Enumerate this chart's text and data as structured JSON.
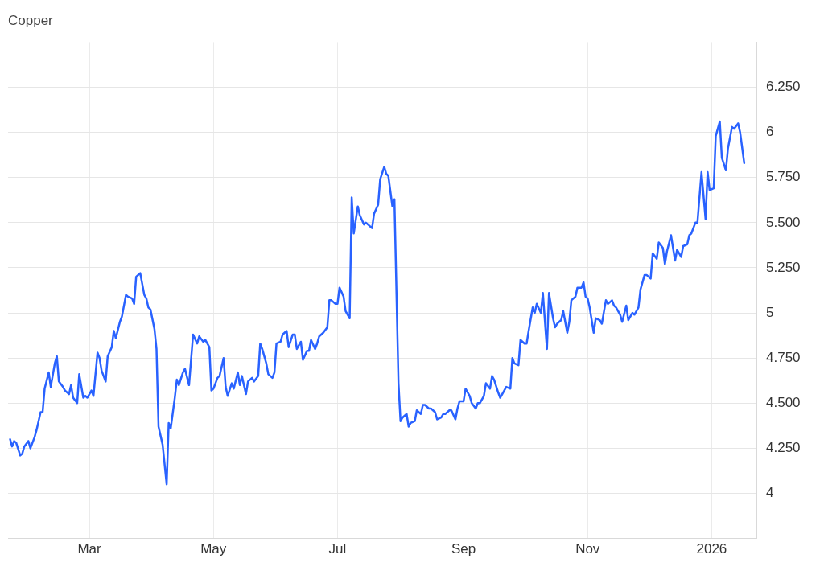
{
  "chart_data": {
    "type": "line",
    "title": "Copper",
    "legend": false,
    "grid": true,
    "marker": "none",
    "line_style": "solid",
    "xlim": [
      "2025-01-20",
      "2026-01-23"
    ],
    "xticks": [
      {
        "value": "2025-03-01",
        "label": "Mar"
      },
      {
        "value": "2025-05-01",
        "label": "May"
      },
      {
        "value": "2025-07-01",
        "label": "Jul"
      },
      {
        "value": "2025-09-01",
        "label": "Sep"
      },
      {
        "value": "2025-11-01",
        "label": "Nov"
      },
      {
        "value": "2026-01-01",
        "label": "2026"
      }
    ],
    "ylim": [
      3.75,
      6.5
    ],
    "yticks": [
      4,
      {
        "value": 4.25,
        "label": "4.250"
      },
      {
        "value": 4.5,
        "label": "4.500"
      },
      {
        "value": 4.75,
        "label": "4.750"
      },
      5,
      {
        "value": 5.25,
        "label": "5.250"
      },
      {
        "value": 5.5,
        "label": "5.500"
      },
      {
        "value": 5.75,
        "label": "5.750"
      },
      6,
      {
        "value": 6.25,
        "label": "6.250"
      }
    ],
    "x": [
      "2025-01-21",
      "2025-01-22",
      "2025-01-23",
      "2025-01-24",
      "2025-01-26",
      "2025-01-27",
      "2025-01-28",
      "2025-01-30",
      "2025-01-31",
      "2025-02-02",
      "2025-02-03",
      "2025-02-05",
      "2025-02-06",
      "2025-02-07",
      "2025-02-09",
      "2025-02-10",
      "2025-02-12",
      "2025-02-13",
      "2025-02-14",
      "2025-02-16",
      "2025-02-17",
      "2025-02-19",
      "2025-02-20",
      "2025-02-21",
      "2025-02-23",
      "2025-02-24",
      "2025-02-26",
      "2025-02-27",
      "2025-02-28",
      "2025-03-02",
      "2025-03-03",
      "2025-03-05",
      "2025-03-06",
      "2025-03-07",
      "2025-03-09",
      "2025-03-10",
      "2025-03-12",
      "2025-03-13",
      "2025-03-14",
      "2025-03-16",
      "2025-03-17",
      "2025-03-19",
      "2025-03-20",
      "2025-03-22",
      "2025-03-23",
      "2025-03-24",
      "2025-03-26",
      "2025-03-28",
      "2025-03-29",
      "2025-03-30",
      "2025-03-31",
      "2025-04-02",
      "2025-04-03",
      "2025-04-04",
      "2025-04-06",
      "2025-04-08",
      "2025-04-09",
      "2025-04-10",
      "2025-04-12",
      "2025-04-13",
      "2025-04-14",
      "2025-04-16",
      "2025-04-17",
      "2025-04-19",
      "2025-04-20",
      "2025-04-21",
      "2025-04-23",
      "2025-04-24",
      "2025-04-26",
      "2025-04-27",
      "2025-04-29",
      "2025-04-30",
      "2025-05-01",
      "2025-05-03",
      "2025-05-04",
      "2025-05-06",
      "2025-05-07",
      "2025-05-08",
      "2025-05-10",
      "2025-05-11",
      "2025-05-13",
      "2025-05-14",
      "2025-05-15",
      "2025-05-17",
      "2025-05-18",
      "2025-05-20",
      "2025-05-21",
      "2025-05-23",
      "2025-05-24",
      "2025-05-25",
      "2025-05-27",
      "2025-05-28",
      "2025-05-30",
      "2025-05-31",
      "2025-06-01",
      "2025-06-03",
      "2025-06-04",
      "2025-06-06",
      "2025-06-07",
      "2025-06-09",
      "2025-06-10",
      "2025-06-11",
      "2025-06-13",
      "2025-06-14",
      "2025-06-16",
      "2025-06-17",
      "2025-06-18",
      "2025-06-20",
      "2025-06-21",
      "2025-06-22",
      "2025-06-24",
      "2025-06-26",
      "2025-06-27",
      "2025-06-28",
      "2025-06-30",
      "2025-07-01",
      "2025-07-02",
      "2025-07-04",
      "2025-07-05",
      "2025-07-07",
      "2025-07-08",
      "2025-07-09",
      "2025-07-11",
      "2025-07-12",
      "2025-07-14",
      "2025-07-15",
      "2025-07-16",
      "2025-07-18",
      "2025-07-19",
      "2025-07-21",
      "2025-07-22",
      "2025-07-24",
      "2025-07-25",
      "2025-07-26",
      "2025-07-28",
      "2025-07-29",
      "2025-07-31",
      "2025-08-01",
      "2025-08-02",
      "2025-08-04",
      "2025-08-05",
      "2025-08-06",
      "2025-08-08",
      "2025-08-09",
      "2025-08-11",
      "2025-08-12",
      "2025-08-13",
      "2025-08-15",
      "2025-08-16",
      "2025-08-18",
      "2025-08-19",
      "2025-08-21",
      "2025-08-22",
      "2025-08-23",
      "2025-08-25",
      "2025-08-26",
      "2025-08-28",
      "2025-08-29",
      "2025-08-30",
      "2025-09-01",
      "2025-09-02",
      "2025-09-04",
      "2025-09-05",
      "2025-09-07",
      "2025-09-08",
      "2025-09-09",
      "2025-09-11",
      "2025-09-12",
      "2025-09-14",
      "2025-09-15",
      "2025-09-16",
      "2025-09-18",
      "2025-09-19",
      "2025-09-21",
      "2025-09-22",
      "2025-09-24",
      "2025-09-25",
      "2025-09-26",
      "2025-09-28",
      "2025-09-29",
      "2025-10-01",
      "2025-10-02",
      "2025-10-03",
      "2025-10-05",
      "2025-10-06",
      "2025-10-07",
      "2025-10-09",
      "2025-10-10",
      "2025-10-12",
      "2025-10-13",
      "2025-10-15",
      "2025-10-16",
      "2025-10-17",
      "2025-10-19",
      "2025-10-20",
      "2025-10-22",
      "2025-10-23",
      "2025-10-24",
      "2025-10-26",
      "2025-10-27",
      "2025-10-29",
      "2025-10-30",
      "2025-10-31",
      "2025-11-01",
      "2025-11-02",
      "2025-11-04",
      "2025-11-05",
      "2025-11-07",
      "2025-11-08",
      "2025-11-10",
      "2025-11-11",
      "2025-11-13",
      "2025-11-14",
      "2025-11-15",
      "2025-11-17",
      "2025-11-18",
      "2025-11-20",
      "2025-11-21",
      "2025-11-23",
      "2025-11-24",
      "2025-11-26",
      "2025-11-27",
      "2025-11-29",
      "2025-11-30",
      "2025-12-02",
      "2025-12-03",
      "2025-12-05",
      "2025-12-06",
      "2025-12-08",
      "2025-12-09",
      "2025-12-10",
      "2025-12-12",
      "2025-12-14",
      "2025-12-15",
      "2025-12-17",
      "2025-12-18",
      "2025-12-20",
      "2025-12-21",
      "2025-12-22",
      "2025-12-24",
      "2025-12-25",
      "2025-12-27",
      "2025-12-29",
      "2025-12-30",
      "2025-12-31",
      "2026-01-02",
      "2026-01-03",
      "2026-01-05",
      "2026-01-06",
      "2026-01-08",
      "2026-01-09",
      "2026-01-11",
      "2026-01-12",
      "2026-01-14",
      "2026-01-15",
      "2026-01-17"
    ],
    "series": [
      {
        "color": "#2962ff",
        "values": [
          4.3,
          4.26,
          4.29,
          4.28,
          4.21,
          4.22,
          4.26,
          4.29,
          4.25,
          4.31,
          4.35,
          4.45,
          4.45,
          4.58,
          4.67,
          4.59,
          4.72,
          4.76,
          4.62,
          4.59,
          4.57,
          4.55,
          4.6,
          4.53,
          4.5,
          4.66,
          4.53,
          4.54,
          4.53,
          4.57,
          4.54,
          4.78,
          4.75,
          4.68,
          4.62,
          4.76,
          4.81,
          4.9,
          4.86,
          4.95,
          4.98,
          5.1,
          5.09,
          5.08,
          5.05,
          5.2,
          5.22,
          5.1,
          5.08,
          5.03,
          5.02,
          4.91,
          4.8,
          4.37,
          4.27,
          4.05,
          4.39,
          4.36,
          4.53,
          4.63,
          4.6,
          4.67,
          4.69,
          4.6,
          4.74,
          4.88,
          4.83,
          4.87,
          4.84,
          4.85,
          4.81,
          4.57,
          4.58,
          4.64,
          4.65,
          4.75,
          4.59,
          4.54,
          4.61,
          4.58,
          4.67,
          4.6,
          4.65,
          4.55,
          4.62,
          4.64,
          4.62,
          4.65,
          4.83,
          4.8,
          4.72,
          4.66,
          4.64,
          4.67,
          4.83,
          4.84,
          4.88,
          4.9,
          4.81,
          4.88,
          4.88,
          4.8,
          4.84,
          4.74,
          4.79,
          4.79,
          4.85,
          4.8,
          4.83,
          4.87,
          4.89,
          4.92,
          5.07,
          5.07,
          5.05,
          5.05,
          5.14,
          5.09,
          5.01,
          4.97,
          5.64,
          5.44,
          5.59,
          5.54,
          5.49,
          5.5,
          5.49,
          5.47,
          5.55,
          5.6,
          5.74,
          5.81,
          5.77,
          5.76,
          5.59,
          5.63,
          4.61,
          4.4,
          4.42,
          4.44,
          4.37,
          4.39,
          4.4,
          4.46,
          4.44,
          4.49,
          4.49,
          4.47,
          4.47,
          4.45,
          4.41,
          4.42,
          4.44,
          4.44,
          4.46,
          4.46,
          4.41,
          4.47,
          4.51,
          4.51,
          4.58,
          4.54,
          4.5,
          4.47,
          4.5,
          4.5,
          4.54,
          4.61,
          4.58,
          4.65,
          4.63,
          4.56,
          4.53,
          4.57,
          4.59,
          4.58,
          4.75,
          4.72,
          4.71,
          4.85,
          4.83,
          4.83,
          4.9,
          5.03,
          5.0,
          5.05,
          5.0,
          5.11,
          4.8,
          5.11,
          4.97,
          4.92,
          4.94,
          4.96,
          5.01,
          4.89,
          4.95,
          5.07,
          5.09,
          5.14,
          5.14,
          5.17,
          5.09,
          5.08,
          5.03,
          4.89,
          4.97,
          4.96,
          4.94,
          5.07,
          5.05,
          5.07,
          5.04,
          5.03,
          4.99,
          4.95,
          5.04,
          4.96,
          5.0,
          4.99,
          5.03,
          5.13,
          5.21,
          5.21,
          5.19,
          5.33,
          5.3,
          5.39,
          5.36,
          5.27,
          5.34,
          5.43,
          5.29,
          5.35,
          5.31,
          5.37,
          5.38,
          5.43,
          5.44,
          5.5,
          5.5,
          5.78,
          5.52,
          5.78,
          5.68,
          5.69,
          5.98,
          6.06,
          5.86,
          5.79,
          5.91,
          6.03,
          6.02,
          6.05,
          6.0,
          5.83
        ]
      }
    ]
  }
}
